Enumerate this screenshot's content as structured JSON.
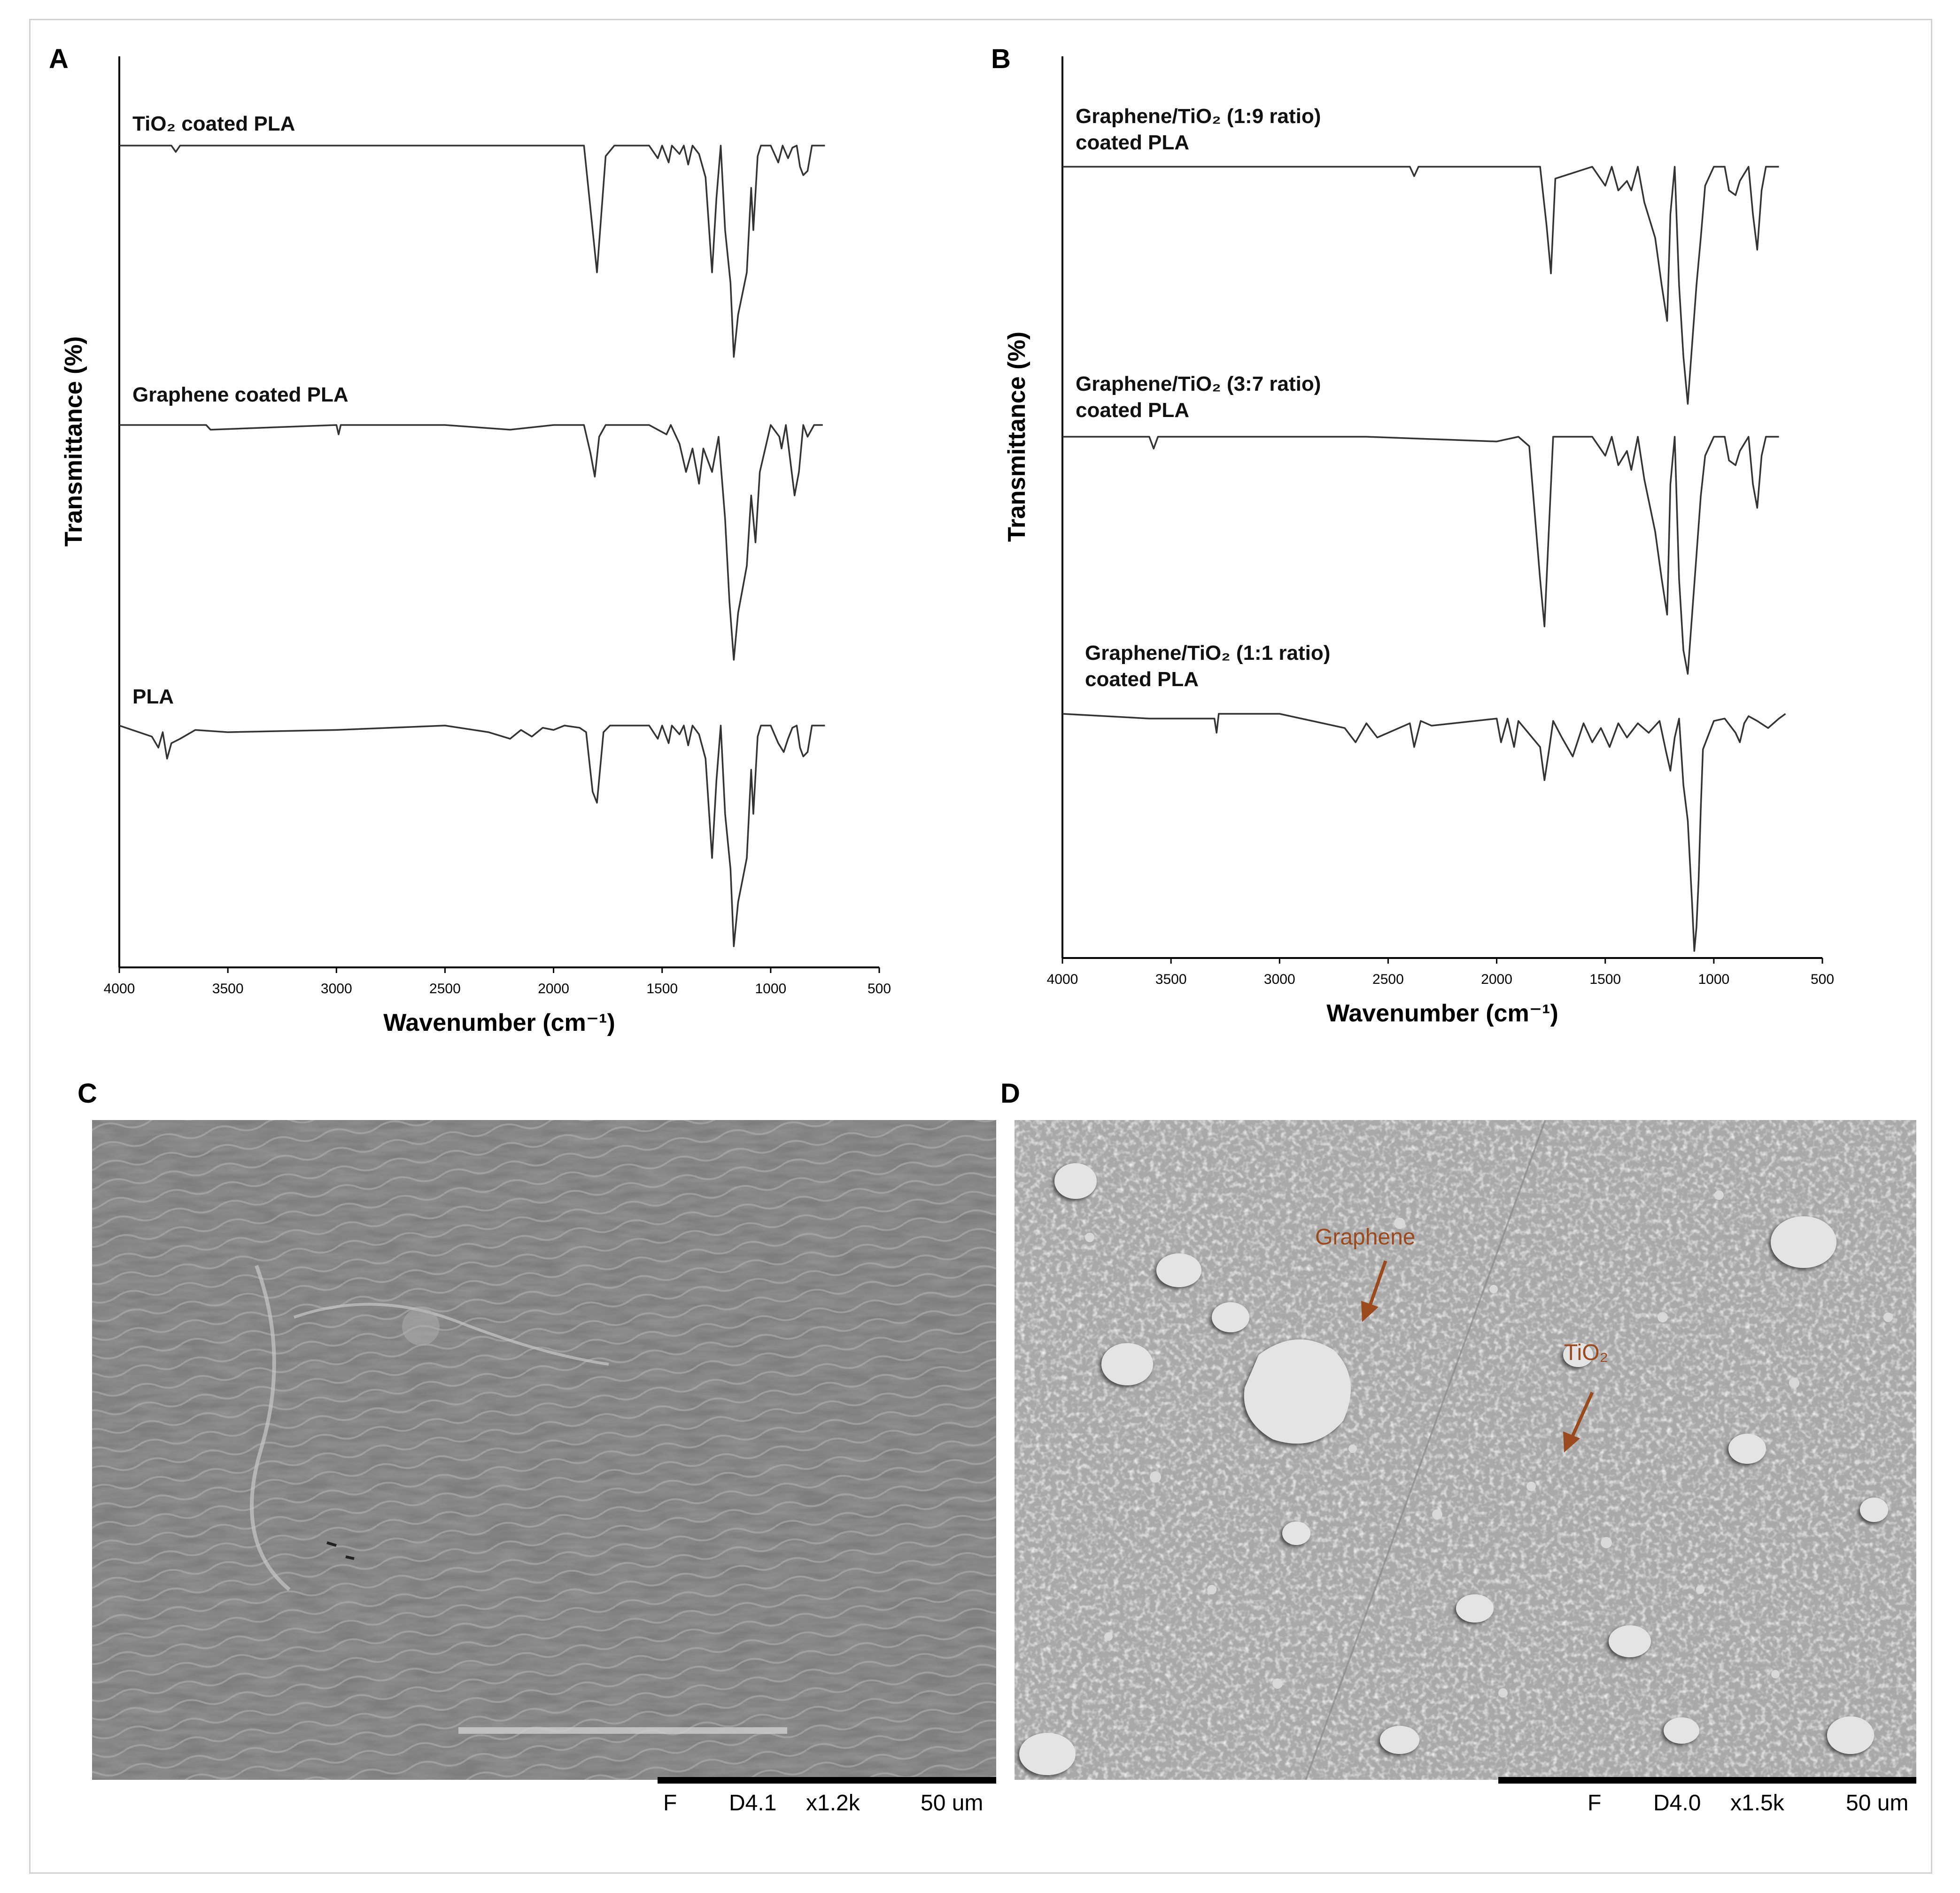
{
  "panels": {
    "a_label": "A",
    "b_label": "B",
    "c_label": "C",
    "d_label": "D"
  },
  "chart_data": [
    {
      "type": "line",
      "panel": "A",
      "xlabel": "Wavenumber (cm⁻¹)",
      "ylabel": "Transmittance (%)",
      "xlim": [
        4000,
        500
      ],
      "x_reversed": true,
      "xticks": [
        4000,
        3500,
        3000,
        2500,
        2000,
        1500,
        1000,
        500
      ],
      "y_ticks_shown": false,
      "grid": false,
      "series": [
        {
          "name": "TiO₂ coated PLA",
          "x": [
            4000,
            3760,
            3740,
            3720,
            1860,
            1830,
            1800,
            1760,
            1720,
            1560,
            1520,
            1500,
            1470,
            1455,
            1420,
            1400,
            1380,
            1360,
            1330,
            1300,
            1270,
            1250,
            1230,
            1210,
            1185,
            1170,
            1150,
            1130,
            1110,
            1090,
            1080,
            1060,
            1045,
            1000,
            965,
            945,
            920,
            900,
            880,
            865,
            850,
            830,
            810,
            780,
            750
          ],
          "y": [
            0,
            0,
            -3,
            0,
            0,
            -30,
            -60,
            -5,
            0,
            0,
            -6,
            0,
            -8,
            0,
            -4,
            0,
            -9,
            0,
            -4,
            -15,
            -60,
            -25,
            0,
            -40,
            -65,
            -100,
            -80,
            -70,
            -60,
            -20,
            -40,
            -5,
            0,
            0,
            -8,
            0,
            -6,
            -1,
            0,
            -10,
            -14,
            -12,
            0,
            0,
            0
          ]
        },
        {
          "name": "Graphene coated PLA",
          "x": [
            4000,
            3600,
            3580,
            3000,
            2990,
            2980,
            2500,
            2200,
            2000,
            1860,
            1830,
            1810,
            1790,
            1760,
            1560,
            1480,
            1460,
            1420,
            1390,
            1360,
            1330,
            1310,
            1270,
            1240,
            1210,
            1190,
            1170,
            1150,
            1130,
            1110,
            1090,
            1070,
            1050,
            1000,
            960,
            950,
            930,
            910,
            890,
            880,
            870,
            850,
            830,
            800,
            760
          ],
          "y": [
            0,
            0,
            -2,
            0,
            -4,
            0,
            0,
            -2,
            0,
            0,
            -12,
            -22,
            -5,
            0,
            0,
            -4,
            0,
            -8,
            -20,
            -10,
            -25,
            -10,
            -20,
            -5,
            -40,
            -75,
            -100,
            -80,
            -70,
            -60,
            -30,
            -50,
            -20,
            0,
            -5,
            -10,
            0,
            -15,
            -30,
            -25,
            -20,
            0,
            -5,
            0,
            0
          ]
        },
        {
          "name": "PLA",
          "x": [
            4000,
            3850,
            3820,
            3800,
            3780,
            3760,
            3720,
            3650,
            3500,
            3000,
            2500,
            2300,
            2200,
            2150,
            2100,
            2050,
            2000,
            1950,
            1880,
            1850,
            1820,
            1800,
            1770,
            1740,
            1560,
            1520,
            1500,
            1470,
            1455,
            1420,
            1400,
            1380,
            1360,
            1330,
            1300,
            1270,
            1250,
            1230,
            1210,
            1185,
            1170,
            1150,
            1130,
            1110,
            1090,
            1080,
            1060,
            1045,
            1000,
            965,
            940,
            920,
            900,
            880,
            865,
            850,
            830,
            810,
            780,
            750
          ],
          "y": [
            0,
            -5,
            -10,
            -3,
            -15,
            -8,
            -6,
            -2,
            -3,
            -2,
            0,
            -3,
            -6,
            -2,
            -5,
            -1,
            -2,
            0,
            -1,
            -3,
            -30,
            -35,
            -3,
            0,
            0,
            -6,
            0,
            -8,
            0,
            -4,
            0,
            -9,
            0,
            -4,
            -15,
            -60,
            -25,
            0,
            -40,
            -65,
            -100,
            -80,
            -70,
            -60,
            -20,
            -40,
            -5,
            0,
            0,
            -8,
            -12,
            -6,
            -1,
            0,
            -10,
            -14,
            -12,
            0,
            0,
            0
          ]
        }
      ]
    },
    {
      "type": "line",
      "panel": "B",
      "xlabel": "Wavenumber (cm⁻¹)",
      "ylabel": "Transmittance (%)",
      "xlim": [
        4000,
        500
      ],
      "x_reversed": true,
      "xticks": [
        4000,
        3500,
        3000,
        2500,
        2000,
        1500,
        1000,
        500
      ],
      "y_ticks_shown": false,
      "grid": false,
      "series": [
        {
          "name": "Graphene/TiO₂ (1:9 ratio) coated PLA",
          "x": [
            4000,
            2400,
            2380,
            2360,
            1800,
            1770,
            1750,
            1730,
            1560,
            1500,
            1470,
            1440,
            1400,
            1380,
            1350,
            1320,
            1270,
            1240,
            1215,
            1200,
            1180,
            1160,
            1140,
            1120,
            1100,
            1080,
            1060,
            1040,
            1000,
            950,
            930,
            900,
            880,
            860,
            840,
            820,
            800,
            780,
            760,
            700
          ],
          "y": [
            0,
            0,
            -4,
            0,
            0,
            -25,
            -45,
            -5,
            0,
            -8,
            0,
            -10,
            -6,
            -10,
            0,
            -15,
            -30,
            -50,
            -65,
            -20,
            0,
            -50,
            -80,
            -100,
            -75,
            -50,
            -30,
            -8,
            0,
            0,
            -10,
            -12,
            -6,
            -3,
            0,
            -20,
            -35,
            -10,
            0,
            0
          ]
        },
        {
          "name": "Graphene/TiO₂ (3:7 ratio) coated PLA",
          "x": [
            4000,
            3600,
            3580,
            3560,
            2600,
            2000,
            1900,
            1850,
            1800,
            1780,
            1760,
            1740,
            1560,
            1500,
            1470,
            1440,
            1400,
            1380,
            1350,
            1320,
            1270,
            1240,
            1215,
            1200,
            1180,
            1160,
            1140,
            1120,
            1100,
            1080,
            1060,
            1040,
            1000,
            950,
            930,
            900,
            880,
            860,
            840,
            820,
            800,
            780,
            760,
            700
          ],
          "y": [
            0,
            0,
            -5,
            0,
            0,
            -2,
            0,
            -4,
            -60,
            -80,
            -40,
            0,
            0,
            -8,
            0,
            -12,
            -6,
            -14,
            0,
            -18,
            -40,
            -60,
            -75,
            -20,
            0,
            -60,
            -90,
            -100,
            -75,
            -50,
            -25,
            -8,
            0,
            0,
            -10,
            -12,
            -6,
            -3,
            0,
            -20,
            -30,
            -8,
            0,
            0
          ]
        },
        {
          "name": "Graphene/TiO₂ (1:1 ratio) coated PLA",
          "x": [
            4000,
            3600,
            3300,
            3290,
            3280,
            3000,
            2700,
            2650,
            2600,
            2550,
            2400,
            2380,
            2350,
            2300,
            2000,
            1980,
            1950,
            1920,
            1900,
            1800,
            1780,
            1760,
            1740,
            1700,
            1650,
            1600,
            1560,
            1520,
            1480,
            1440,
            1400,
            1350,
            1300,
            1250,
            1220,
            1200,
            1180,
            1160,
            1140,
            1120,
            1100,
            1090,
            1080,
            1070,
            1060,
            1050,
            1000,
            950,
            900,
            880,
            860,
            840,
            800,
            750,
            700,
            670
          ],
          "y": [
            0,
            -2,
            -2,
            -8,
            0,
            0,
            -6,
            -12,
            -4,
            -10,
            -4,
            -14,
            -3,
            -5,
            -2,
            -12,
            -2,
            -14,
            -3,
            -14,
            -28,
            -16,
            -3,
            -10,
            -18,
            -4,
            -12,
            -6,
            -14,
            -4,
            -10,
            -4,
            -8,
            -3,
            -16,
            -24,
            -10,
            -2,
            -30,
            -45,
            -80,
            -100,
            -90,
            -70,
            -40,
            -15,
            -3,
            -2,
            -8,
            -12,
            -4,
            -1,
            -3,
            -6,
            -2,
            0
          ]
        }
      ]
    }
  ],
  "sem_c": {
    "scale_f": "F",
    "scale_code": "D4.1",
    "scale_mag": "x1.2k",
    "scale_len": "50 um"
  },
  "sem_d": {
    "scale_f": "F",
    "scale_code": "D4.0",
    "scale_mag": "x1.5k",
    "scale_len": "50 um",
    "annotation_graphene": "Graphene",
    "annotation_tio2": "TiO₂",
    "annotation_color": "#9b4a1e"
  }
}
